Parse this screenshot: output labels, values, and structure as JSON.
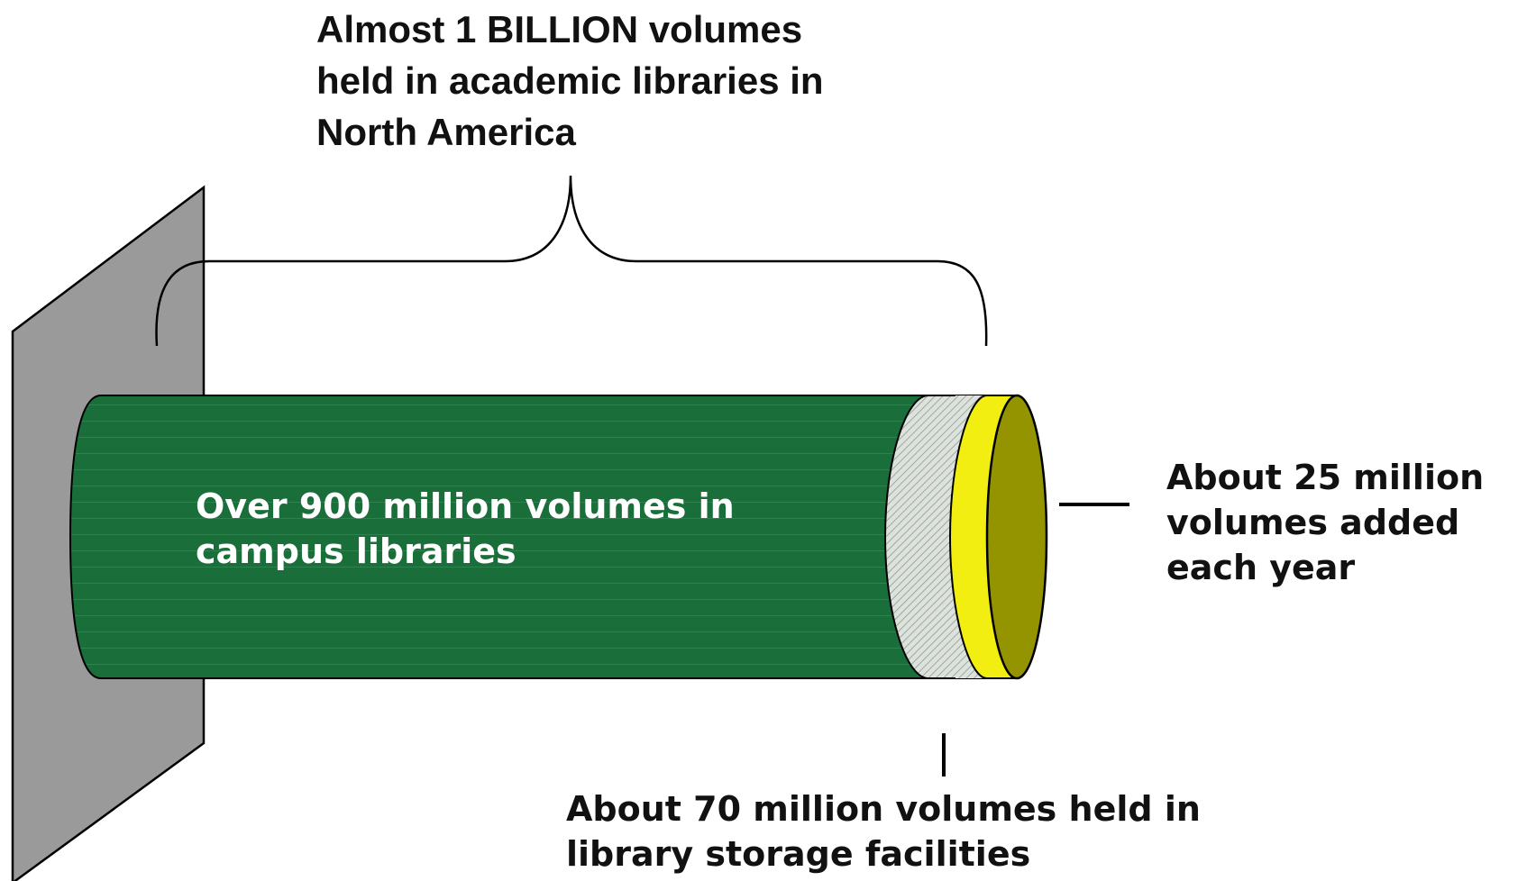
{
  "labels": {
    "total": {
      "line1": "Almost 1 BILLION volumes",
      "line2": "held in academic libraries in",
      "line3": "North America"
    },
    "campus": {
      "line1": "Over 900 million volumes in",
      "line2": "campus libraries"
    },
    "annual": {
      "line1": "About 25 million",
      "line2": "volumes added",
      "line3": "each year"
    },
    "storage": {
      "line1": "About 70 million volumes held in",
      "line2": "library storage facilities"
    }
  },
  "colors": {
    "wall": "#9a9a9a",
    "campus_cylinder": "#1a6e3a",
    "storage_band": "#d3d9d3",
    "annual_ring": "#f2ee12",
    "end_cap": "#949400",
    "text_dark": "#111111",
    "text_light": "#ffffff"
  }
}
